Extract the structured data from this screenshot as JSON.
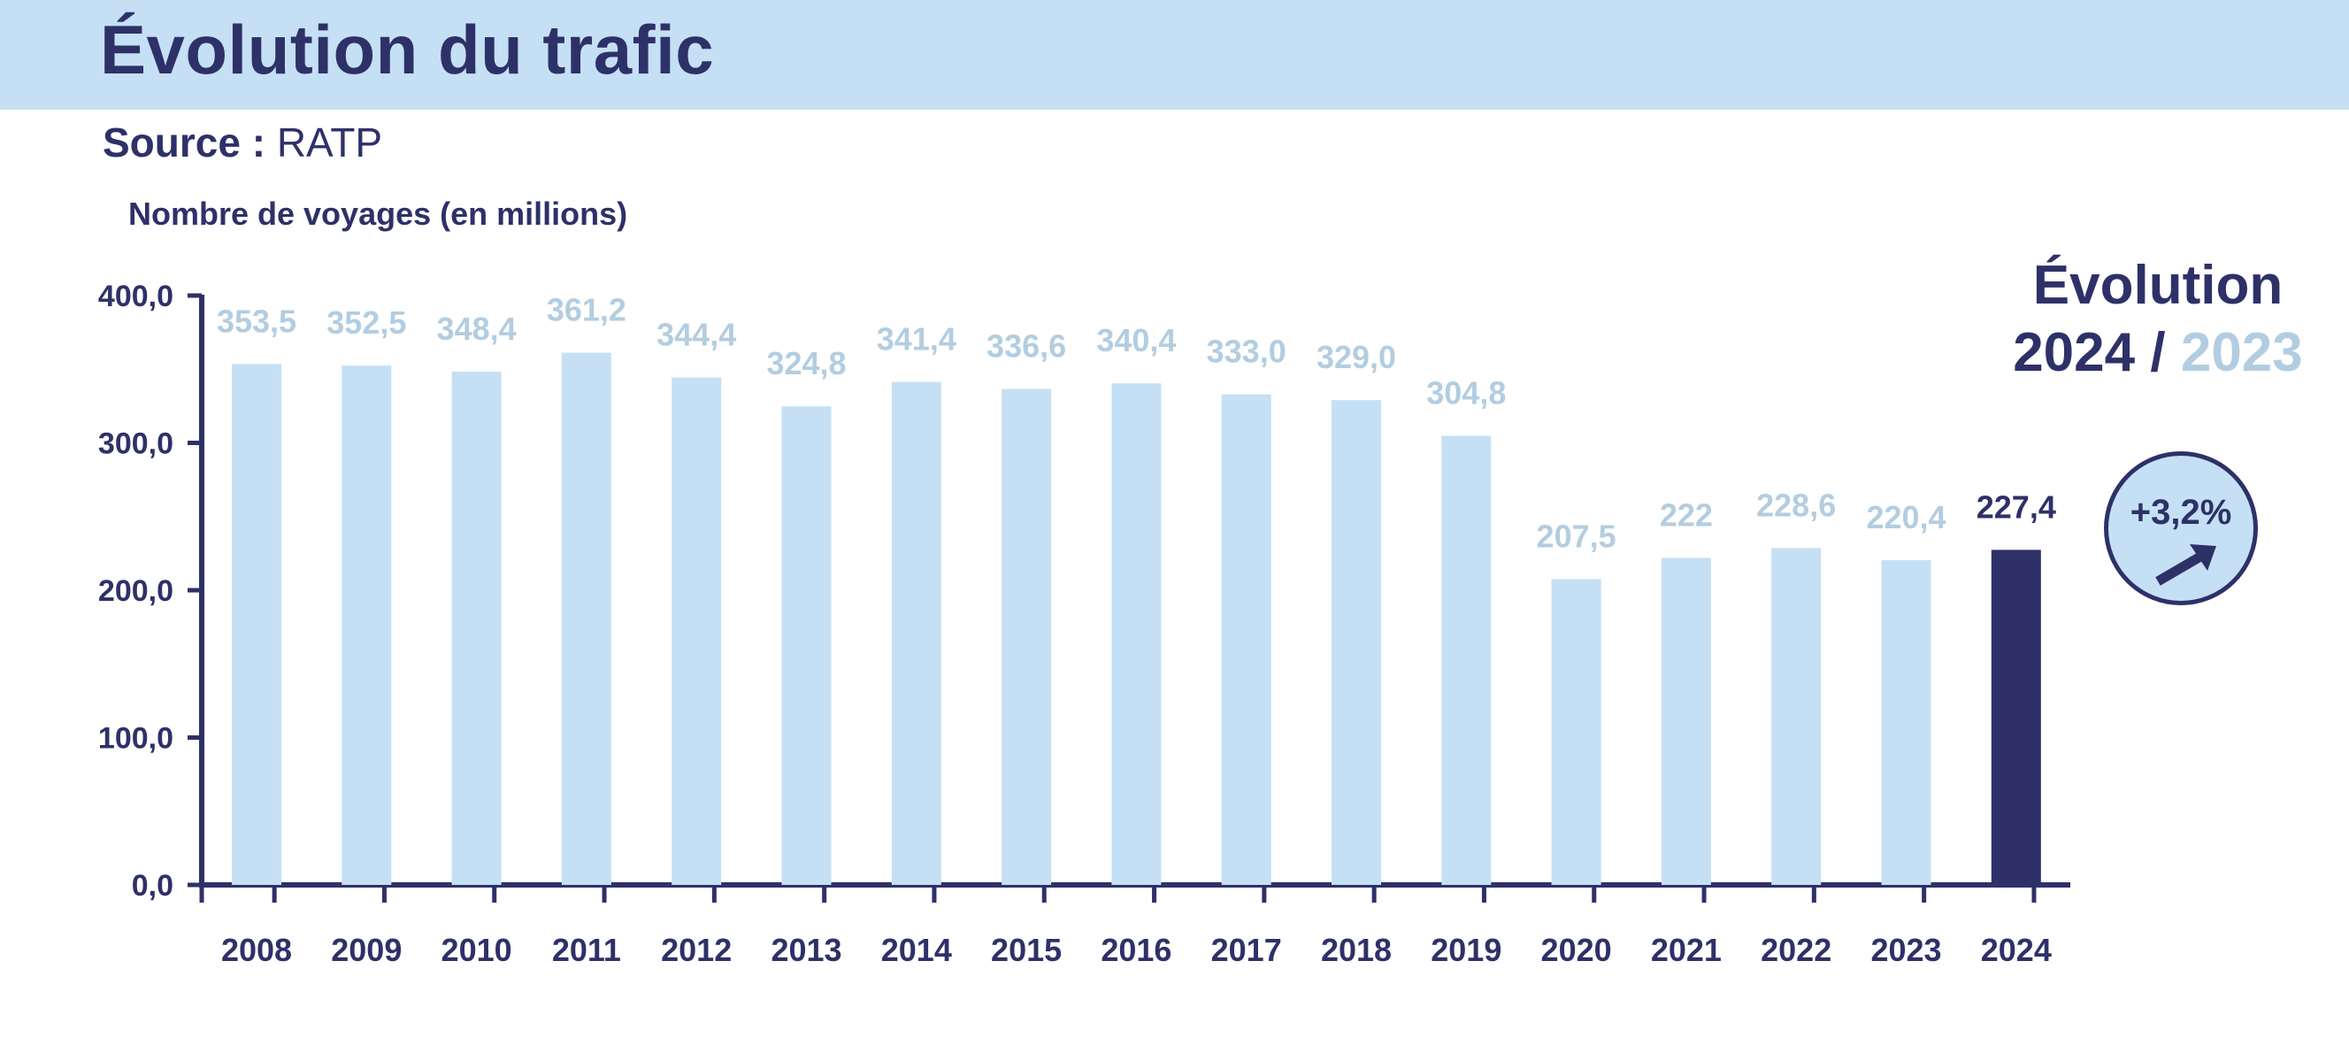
{
  "header": {
    "title": "Évolution du trafic",
    "source_label": "Source :",
    "source_value": "RATP"
  },
  "evolution": {
    "title": "Évolution",
    "year_current": "2024",
    "separator": "/",
    "year_previous": "2023",
    "percent": "+3,2%",
    "icon": "arrow-up-right-icon"
  },
  "colors": {
    "bar_default": "#c5e0f5",
    "bar_highlight": "#2e3168",
    "label_default": "#b3cde0",
    "label_highlight": "#2e3168",
    "axis": "#2e3168",
    "header_band": "#c5e0f5"
  },
  "chart_data": {
    "type": "bar",
    "title": "",
    "xlabel": "",
    "ylabel": "Nombre de voyages (en millions)",
    "ylim": [
      0,
      400
    ],
    "yticks": [
      "0,0",
      "100,0",
      "200,0",
      "300,0",
      "400,0"
    ],
    "yticks_values": [
      0,
      100,
      200,
      300,
      400
    ],
    "grid": false,
    "legend": "none",
    "categories": [
      "2008",
      "2009",
      "2010",
      "2011",
      "2012",
      "2013",
      "2014",
      "2015",
      "2016",
      "2017",
      "2018",
      "2019",
      "2020",
      "2021",
      "2022",
      "2023",
      "2024"
    ],
    "values": [
      353.5,
      352.5,
      348.4,
      361.2,
      344.4,
      324.8,
      341.4,
      336.6,
      340.4,
      333.0,
      329.0,
      304.8,
      207.5,
      222,
      228.6,
      220.4,
      227.4
    ],
    "value_labels": [
      "353,5",
      "352,5",
      "348,4",
      "361,2",
      "344,4",
      "324,8",
      "341,4",
      "336,6",
      "340,4",
      "333,0",
      "329,0",
      "304,8",
      "207,5",
      "222",
      "228,6",
      "220,4",
      "227,4"
    ],
    "highlight_category": "2024"
  }
}
